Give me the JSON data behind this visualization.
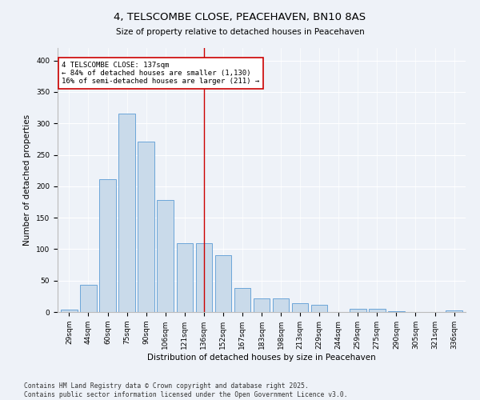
{
  "title": "4, TELSCOMBE CLOSE, PEACEHAVEN, BN10 8AS",
  "subtitle": "Size of property relative to detached houses in Peacehaven",
  "xlabel": "Distribution of detached houses by size in Peacehaven",
  "ylabel": "Number of detached properties",
  "categories": [
    "29sqm",
    "44sqm",
    "60sqm",
    "75sqm",
    "90sqm",
    "106sqm",
    "121sqm",
    "136sqm",
    "152sqm",
    "167sqm",
    "183sqm",
    "198sqm",
    "213sqm",
    "229sqm",
    "244sqm",
    "259sqm",
    "275sqm",
    "290sqm",
    "305sqm",
    "321sqm",
    "336sqm"
  ],
  "values": [
    4,
    43,
    211,
    315,
    271,
    178,
    110,
    110,
    91,
    38,
    22,
    22,
    14,
    12,
    0,
    5,
    5,
    1,
    0,
    0,
    3
  ],
  "bar_color": "#c9daea",
  "bar_edge_color": "#5b9bd5",
  "vline_x": 7,
  "vline_color": "#cc0000",
  "annotation_text": "4 TELSCOMBE CLOSE: 137sqm\n← 84% of detached houses are smaller (1,130)\n16% of semi-detached houses are larger (211) →",
  "annotation_box_color": "#ffffff",
  "annotation_box_edge_color": "#cc0000",
  "ylim": [
    0,
    420
  ],
  "yticks": [
    0,
    50,
    100,
    150,
    200,
    250,
    300,
    350,
    400
  ],
  "footer_line1": "Contains HM Land Registry data © Crown copyright and database right 2025.",
  "footer_line2": "Contains public sector information licensed under the Open Government Licence v3.0.",
  "title_fontsize": 9.5,
  "label_fontsize": 7.5,
  "tick_fontsize": 6.5,
  "footer_fontsize": 5.8,
  "annotation_fontsize": 6.5,
  "bg_color": "#eef2f8"
}
